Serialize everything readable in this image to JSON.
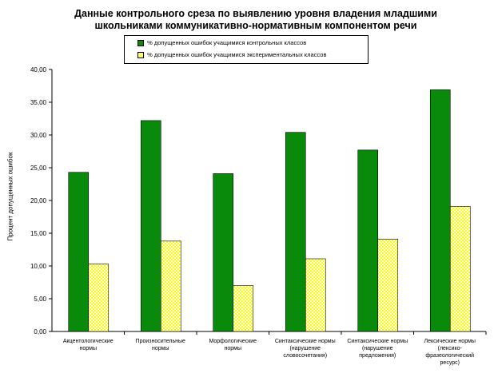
{
  "chart_data": {
    "type": "bar",
    "title": "Данные контрольного среза по выявлению уровня владения младшими школьниками коммуникативно-нормативным компонентом речи",
    "ylabel": "Процент допущенных ошибок",
    "xlabel": "",
    "ylim": [
      0,
      40
    ],
    "ytick_step": 5,
    "yticks": [
      "0,00",
      "5,00",
      "10,00",
      "15,00",
      "20,00",
      "25,00",
      "30,00",
      "35,00",
      "40,00"
    ],
    "grid": false,
    "legend_position": "top",
    "categories": [
      "Акцентологические нормы",
      "Произносительные нормы",
      "Морфологические нормы",
      "Синтаксические нормы (нарушение словосочетания)",
      "Синтаксические нормы (нарушение предложения)",
      "Лексические нормы (лексико-фразеологический ресурс)"
    ],
    "series": [
      {
        "name": "% допущенных ошибок учащимися контрольных классов",
        "values": [
          24.3,
          32.2,
          24.1,
          30.4,
          27.7,
          36.9
        ],
        "color": "#0a8a0a"
      },
      {
        "name": "% допущенных ошибок учащимися экспериментальных классов",
        "values": [
          10.3,
          13.8,
          7.0,
          11.1,
          14.1,
          19.1
        ],
        "color": "#ffff00"
      }
    ]
  }
}
